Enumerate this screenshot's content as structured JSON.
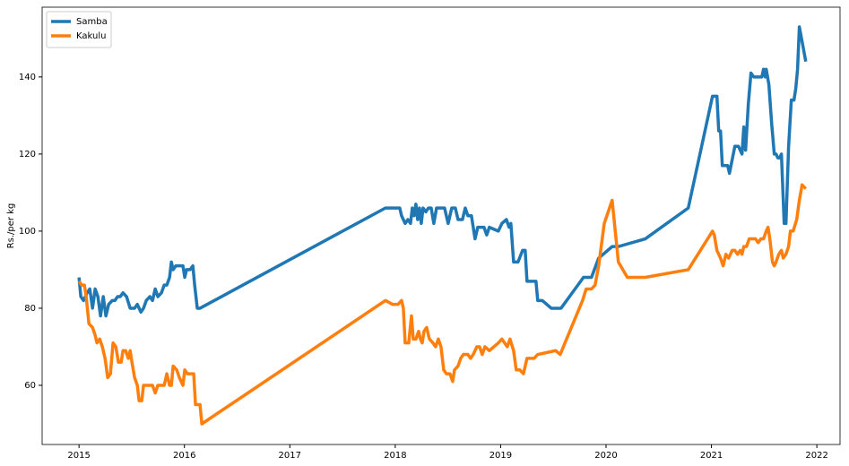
{
  "chart_data": {
    "type": "line",
    "y_label": "Rs./per kg",
    "xlim": [
      2014.65,
      2022.22
    ],
    "ylim": [
      44.65,
      158.1
    ],
    "xticks": [
      2015,
      2016,
      2017,
      2018,
      2019,
      2020,
      2021,
      2022
    ],
    "yticks": [
      60,
      80,
      100,
      120,
      140
    ],
    "grid": false,
    "legend": "upper-left",
    "series": [
      {
        "name": "Samba",
        "color": "#1f77b4",
        "x": [
          2015.0,
          2015.017,
          2015.043,
          2015.077,
          2015.102,
          2015.128,
          2015.153,
          2015.179,
          2015.204,
          2015.23,
          2015.255,
          2015.281,
          2015.315,
          2015.34,
          2015.366,
          2015.391,
          2015.417,
          2015.451,
          2015.485,
          2015.527,
          2015.553,
          2015.587,
          2015.612,
          2015.638,
          2015.672,
          2015.697,
          2015.723,
          2015.748,
          2015.782,
          2015.808,
          2015.833,
          2015.859,
          2015.876,
          2015.893,
          2015.918,
          2015.952,
          2015.986,
          2016.003,
          2016.02,
          2016.054,
          2016.08,
          2016.097,
          2016.122,
          2016.148,
          2017.907,
          2017.992,
          2018.043,
          2018.06,
          2018.094,
          2018.12,
          2018.145,
          2018.162,
          2018.179,
          2018.196,
          2018.213,
          2018.23,
          2018.247,
          2018.264,
          2018.29,
          2018.315,
          2018.341,
          2018.366,
          2018.392,
          2018.434,
          2018.468,
          2018.502,
          2018.536,
          2018.57,
          2018.596,
          2018.638,
          2018.664,
          2018.689,
          2018.723,
          2018.757,
          2018.783,
          2018.842,
          2018.868,
          2018.893,
          2018.978,
          2019.012,
          2019.055,
          2019.08,
          2019.097,
          2019.123,
          2019.165,
          2019.208,
          2019.233,
          2019.25,
          2019.335,
          2019.352,
          2019.395,
          2019.48,
          2019.573,
          2019.786,
          2019.862,
          2019.93,
          2020.058,
          2020.117,
          2020.372,
          2020.78,
          2021.01,
          2021.052,
          2021.069,
          2021.086,
          2021.103,
          2021.154,
          2021.171,
          2021.222,
          2021.256,
          2021.29,
          2021.307,
          2021.324,
          2021.35,
          2021.375,
          2021.401,
          2021.478,
          2021.494,
          2021.511,
          2021.52,
          2021.545,
          2021.571,
          2021.596,
          2021.613,
          2021.63,
          2021.647,
          2021.664,
          2021.69,
          2021.707,
          2021.732,
          2021.758,
          2021.783,
          2021.8,
          2021.817,
          2021.834,
          2021.868,
          2021.895
        ],
        "values": [
          88,
          83,
          82,
          84,
          85,
          80,
          85,
          83,
          78,
          83,
          78,
          81,
          82,
          82,
          83,
          83,
          84,
          83,
          80,
          80,
          81,
          79,
          80,
          82,
          83,
          82,
          85,
          83,
          84,
          86,
          86,
          88,
          92,
          90,
          91,
          91,
          91,
          88,
          90,
          90,
          91,
          86,
          80,
          80,
          106,
          106,
          106,
          104,
          102,
          103,
          102,
          106,
          104,
          107,
          103,
          106,
          102,
          106,
          105,
          106,
          106,
          102,
          106,
          106,
          106,
          102,
          106,
          106,
          103,
          103,
          106,
          104,
          104,
          98,
          101,
          101,
          99,
          101,
          100,
          102,
          103,
          101,
          102,
          92,
          92,
          95,
          95,
          87,
          87,
          82,
          82,
          80,
          80,
          88,
          88,
          93,
          96,
          96,
          98,
          106,
          135,
          135,
          126,
          126,
          117,
          117,
          115,
          122,
          122,
          120,
          127,
          121,
          133,
          141,
          140,
          140,
          142,
          140,
          142,
          138,
          128,
          120,
          120,
          119,
          119,
          120,
          102,
          102,
          122,
          134,
          134,
          137,
          142,
          153,
          148,
          144
        ]
      },
      {
        "name": "Kakulu",
        "color": "#ff7f0e",
        "x": [
          2015.0,
          2015.026,
          2015.051,
          2015.068,
          2015.094,
          2015.128,
          2015.153,
          2015.17,
          2015.196,
          2015.221,
          2015.247,
          2015.272,
          2015.298,
          2015.323,
          2015.349,
          2015.374,
          2015.4,
          2015.417,
          2015.442,
          2015.468,
          2015.485,
          2015.502,
          2015.527,
          2015.553,
          2015.57,
          2015.595,
          2015.612,
          2015.655,
          2015.697,
          2015.723,
          2015.748,
          2015.808,
          2015.833,
          2015.859,
          2015.876,
          2015.893,
          2015.927,
          2015.952,
          2015.986,
          2016.003,
          2016.029,
          2016.088,
          2016.105,
          2016.148,
          2016.165,
          2017.907,
          2017.975,
          2018.026,
          2018.06,
          2018.077,
          2018.094,
          2018.128,
          2018.154,
          2018.171,
          2018.196,
          2018.222,
          2018.239,
          2018.256,
          2018.273,
          2018.298,
          2018.324,
          2018.358,
          2018.383,
          2018.409,
          2018.434,
          2018.46,
          2018.485,
          2018.519,
          2018.545,
          2018.562,
          2018.596,
          2018.621,
          2018.647,
          2018.689,
          2018.715,
          2018.74,
          2018.774,
          2018.8,
          2018.825,
          2018.851,
          2018.893,
          2018.936,
          2018.978,
          2019.012,
          2019.038,
          2019.063,
          2019.089,
          2019.123,
          2019.148,
          2019.182,
          2019.216,
          2019.25,
          2019.318,
          2019.352,
          2019.522,
          2019.565,
          2019.777,
          2019.811,
          2019.862,
          2019.896,
          2019.93,
          2019.983,
          2020.058,
          2020.117,
          2020.202,
          2020.372,
          2020.78,
          2021.01,
          2021.027,
          2021.052,
          2021.086,
          2021.111,
          2021.137,
          2021.163,
          2021.197,
          2021.222,
          2021.248,
          2021.273,
          2021.29,
          2021.307,
          2021.333,
          2021.358,
          2021.392,
          2021.418,
          2021.443,
          2021.469,
          2021.494,
          2021.52,
          2021.537,
          2021.554,
          2021.579,
          2021.596,
          2021.613,
          2021.639,
          2021.664,
          2021.681,
          2021.707,
          2021.732,
          2021.749,
          2021.775,
          2021.809,
          2021.834,
          2021.86,
          2021.895
        ],
        "values": [
          87,
          86,
          86,
          83,
          76,
          75,
          73,
          71,
          72,
          70,
          67,
          62,
          63,
          71,
          70,
          66,
          66,
          69,
          69,
          67,
          69,
          66,
          62,
          60,
          56,
          56,
          60,
          60,
          60,
          58,
          60,
          60,
          63,
          60,
          60,
          65,
          64,
          62,
          60,
          64,
          63,
          63,
          55,
          55,
          50,
          82,
          81,
          81,
          82,
          80,
          71,
          71,
          78,
          72,
          72,
          74,
          72,
          71,
          74,
          75,
          72,
          71,
          70,
          72,
          70,
          64,
          63,
          63,
          61,
          64,
          65,
          67,
          68,
          68,
          67,
          68,
          70,
          70,
          68,
          70,
          69,
          70,
          71,
          72,
          71,
          70,
          72,
          69,
          64,
          64,
          63,
          67,
          67,
          68,
          69,
          68,
          82,
          85,
          85,
          86,
          91,
          102,
          108,
          92,
          88,
          88,
          90,
          100,
          99,
          95,
          93,
          91,
          94,
          93,
          95,
          95,
          94,
          95,
          94,
          96,
          96,
          98,
          98,
          98,
          97,
          98,
          98,
          100,
          101,
          98,
          92,
          91,
          92,
          94,
          95,
          93,
          94,
          96,
          100,
          100,
          103,
          108,
          112,
          111
        ]
      }
    ]
  }
}
